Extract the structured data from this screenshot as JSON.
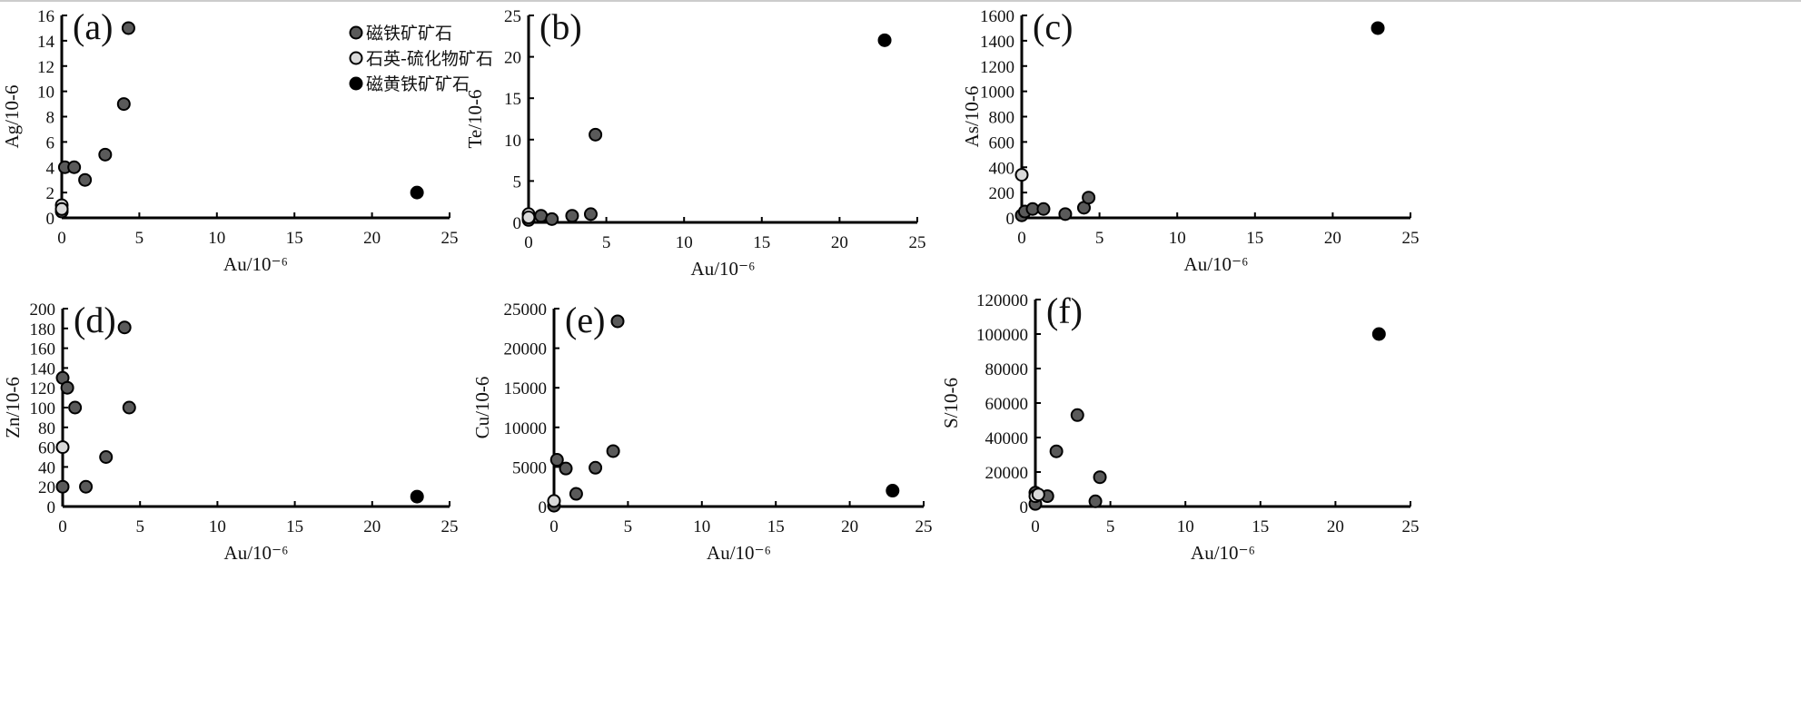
{
  "legend": [
    {
      "name": "磁铁矿矿石",
      "color": "#5a5a5a"
    },
    {
      "name": "石英-硫化物矿石",
      "color": "#d9d9d9"
    },
    {
      "name": "磁黄铁矿矿石",
      "color": "#000000"
    }
  ],
  "chart_data": [
    {
      "type": "scatter",
      "panel_label": "(a)",
      "xlabel": "Au/10⁻⁶",
      "ylabel": "Ag/10-6",
      "xlim": [
        0,
        25
      ],
      "ylim": [
        0,
        16
      ],
      "xticks": [
        0,
        5,
        10,
        15,
        20,
        25
      ],
      "yticks": [
        0,
        2,
        4,
        6,
        8,
        10,
        12,
        14,
        16
      ],
      "series": [
        {
          "name": "磁铁矿矿石",
          "points": [
            [
              0,
              0.5
            ],
            [
              0.2,
              4
            ],
            [
              0.8,
              4
            ],
            [
              1.5,
              3
            ],
            [
              2.8,
              5
            ],
            [
              4.0,
              9
            ],
            [
              4.3,
              15
            ]
          ]
        },
        {
          "name": "石英-硫化物矿石",
          "points": [
            [
              0,
              1.0
            ],
            [
              0,
              0.7
            ]
          ]
        },
        {
          "name": "磁黄铁矿矿石",
          "points": [
            [
              22.9,
              2
            ]
          ]
        }
      ]
    },
    {
      "type": "scatter",
      "panel_label": "(b)",
      "xlabel": "Au/10⁻⁶",
      "ylabel": "Te/10-6",
      "xlim": [
        0,
        25
      ],
      "ylim": [
        0,
        25
      ],
      "xticks": [
        0,
        5,
        10,
        15,
        20,
        25
      ],
      "yticks": [
        0,
        5,
        10,
        15,
        20,
        25
      ],
      "series": [
        {
          "name": "磁铁矿矿石",
          "points": [
            [
              0,
              0.3
            ],
            [
              0.8,
              0.8
            ],
            [
              1.5,
              0.4
            ],
            [
              2.8,
              0.8
            ],
            [
              4.0,
              1.0
            ],
            [
              4.3,
              10.6
            ]
          ]
        },
        {
          "name": "石英-硫化物矿石",
          "points": [
            [
              0,
              1.0
            ],
            [
              0,
              0.6
            ]
          ]
        },
        {
          "name": "磁黄铁矿矿石",
          "points": [
            [
              22.9,
              22
            ]
          ]
        }
      ]
    },
    {
      "type": "scatter",
      "panel_label": "(c)",
      "xlabel": "Au/10⁻⁶",
      "ylabel": "As/10-6",
      "xlim": [
        0,
        25
      ],
      "ylim": [
        0,
        1600
      ],
      "xticks": [
        0,
        5,
        10,
        15,
        20,
        25
      ],
      "yticks": [
        0,
        200,
        400,
        600,
        800,
        1000,
        1200,
        1400,
        1600
      ],
      "series": [
        {
          "name": "磁铁矿矿石",
          "points": [
            [
              0,
              20
            ],
            [
              0.2,
              50
            ],
            [
              0.7,
              70
            ],
            [
              1.4,
              70
            ],
            [
              2.8,
              30
            ],
            [
              4.0,
              80
            ],
            [
              4.3,
              160
            ]
          ]
        },
        {
          "name": "石英-硫化物矿石",
          "points": [
            [
              0,
              340
            ]
          ]
        },
        {
          "name": "磁黄铁矿矿石",
          "points": [
            [
              22.9,
              1500
            ]
          ]
        }
      ]
    },
    {
      "type": "scatter",
      "panel_label": "(d)",
      "xlabel": "Au/10⁻⁶",
      "ylabel": "Zn/10-6",
      "xlim": [
        0,
        25
      ],
      "ylim": [
        0,
        200
      ],
      "xticks": [
        0,
        5,
        10,
        15,
        20,
        25
      ],
      "yticks": [
        0,
        20,
        40,
        60,
        80,
        100,
        120,
        140,
        160,
        180,
        200
      ],
      "series": [
        {
          "name": "磁铁矿矿石",
          "points": [
            [
              0,
              130
            ],
            [
              0.3,
              120
            ],
            [
              0.8,
              100
            ],
            [
              4.0,
              181
            ],
            [
              4.3,
              100
            ],
            [
              2.8,
              50
            ],
            [
              1.5,
              20
            ],
            [
              0,
              20
            ]
          ]
        },
        {
          "name": "石英-硫化物矿石",
          "points": [
            [
              0,
              60
            ]
          ]
        },
        {
          "name": "磁黄铁矿矿石",
          "points": [
            [
              22.9,
              10
            ]
          ]
        }
      ]
    },
    {
      "type": "scatter",
      "panel_label": "(e)",
      "xlabel": "Au/10⁻⁶",
      "ylabel": "Cu/10-6",
      "xlim": [
        0,
        25
      ],
      "ylim": [
        0,
        25000
      ],
      "xticks": [
        0,
        5,
        10,
        15,
        20,
        25
      ],
      "yticks": [
        0,
        5000,
        10000,
        15000,
        20000,
        25000
      ],
      "series": [
        {
          "name": "磁铁矿矿石",
          "points": [
            [
              0,
              100
            ],
            [
              0.2,
              5900
            ],
            [
              0.8,
              4800
            ],
            [
              1.5,
              1600
            ],
            [
              2.8,
              4900
            ],
            [
              4.0,
              7000
            ],
            [
              4.3,
              23400
            ]
          ]
        },
        {
          "name": "石英-硫化物矿石",
          "points": [
            [
              0,
              700
            ]
          ]
        },
        {
          "name": "磁黄铁矿矿石",
          "points": [
            [
              22.9,
              2000
            ]
          ]
        }
      ]
    },
    {
      "type": "scatter",
      "panel_label": "(f)",
      "xlabel": "Au/10⁻⁶",
      "ylabel": "S/10-6",
      "xlim": [
        0,
        25
      ],
      "ylim": [
        0,
        120000
      ],
      "xticks": [
        0,
        5,
        10,
        15,
        20,
        25
      ],
      "yticks": [
        0,
        20000,
        40000,
        60000,
        80000,
        100000,
        120000
      ],
      "series": [
        {
          "name": "磁铁矿矿石",
          "points": [
            [
              0,
              1500
            ],
            [
              0.8,
              6000
            ],
            [
              1.4,
              32000
            ],
            [
              2.8,
              53000
            ],
            [
              4.0,
              3000
            ],
            [
              4.3,
              17000
            ],
            [
              0,
              8000
            ]
          ]
        },
        {
          "name": "石英-硫化物矿石",
          "points": [
            [
              0,
              6000
            ],
            [
              0.2,
              7000
            ]
          ]
        },
        {
          "name": "磁黄铁矿矿石",
          "points": [
            [
              22.9,
              100000
            ]
          ]
        }
      ]
    }
  ]
}
